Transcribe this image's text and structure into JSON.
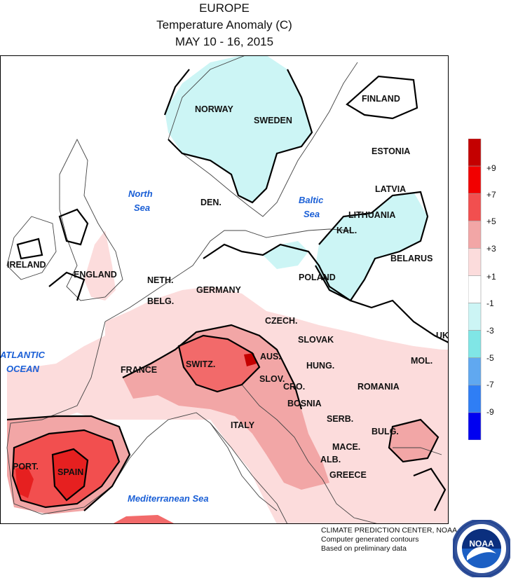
{
  "title": {
    "region": "EUROPE",
    "variable": "Temperature Anomaly (C)",
    "period": "MAY 10 - 16, 2015"
  },
  "legend": {
    "labels": [
      "+9",
      "+7",
      "+5",
      "+3",
      "+1",
      "-1",
      "-3",
      "-5",
      "-7",
      "-9"
    ],
    "colors": [
      "#c40000",
      "#f20000",
      "#f24f4f",
      "#f2a6a6",
      "#fcdcdc",
      "#ffffff",
      "#ccf5f5",
      "#80e6e6",
      "#60a8f0",
      "#2f7ef5",
      "#0000f0"
    ]
  },
  "places": {
    "norway": "NORWAY",
    "sweden": "SWEDEN",
    "finland": "FINLAND",
    "estonia": "ESTONIA",
    "latvia": "LATVIA",
    "lithuania": "LITHUANIA",
    "kal": "KAL.",
    "belarus": "BELARUS",
    "poland": "POLAND",
    "den": "DEN.",
    "ireland": "IRELAND",
    "england": "ENGLAND",
    "neth": "NETH.",
    "belg": "BELG.",
    "germany": "GERMANY",
    "czech": "CZECH.",
    "slovak": "SLOVAK",
    "uk": "UK",
    "france": "FRANCE",
    "switz": "SWITZ.",
    "aus": "AUS.",
    "hung": "HUNG.",
    "mol": "MOL.",
    "slov": "SLOV.",
    "cro": "CRO.",
    "romania": "ROMANIA",
    "bosnia": "BOSNIA",
    "serb": "SERB.",
    "italy": "ITALY",
    "bulg": "BULG.",
    "port": "PORT.",
    "spain": "SPAIN",
    "mace": "MACE.",
    "alb": "ALB.",
    "greece": "GREECE"
  },
  "seas": {
    "north_sea_1": "North",
    "north_sea_2": "Sea",
    "baltic_sea_1": "Baltic",
    "baltic_sea_2": "Sea",
    "atlantic_1": "ATLANTIC",
    "atlantic_2": "OCEAN",
    "mediterranean": "Mediterranean Sea"
  },
  "footer": {
    "line1": "CLIMATE PREDICTION CENTER, NOAA",
    "line2": "Computer generated contours",
    "line3": "Based on preliminary data"
  },
  "logo": {
    "text": "NOAA",
    "ring_text": "NATIONAL OCEANIC AND ATMOSPHERIC ADMINISTRATION · U.S. DEPARTMENT OF COMMERCE"
  }
}
